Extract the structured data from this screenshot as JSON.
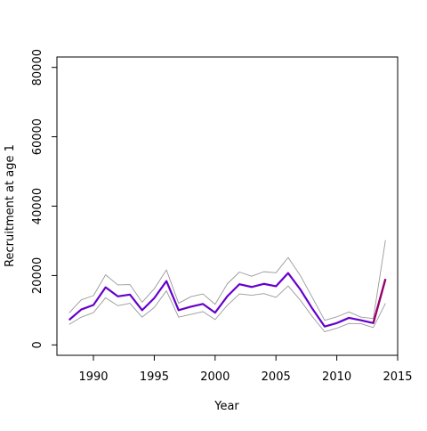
{
  "chart_data": {
    "type": "line",
    "title": "",
    "xlabel": "Year",
    "ylabel": "Recruitment at age 1",
    "xlim": [
      1987.0,
      2015.0
    ],
    "ylim": [
      -3000,
      83000
    ],
    "x_ticks": [
      1990,
      1995,
      2000,
      2005,
      2010,
      2015
    ],
    "y_ticks": [
      0,
      20000,
      40000,
      60000,
      80000
    ],
    "x": [
      1988,
      1989,
      1990,
      1991,
      1992,
      1993,
      1994,
      1995,
      1996,
      1997,
      1998,
      1999,
      2000,
      2001,
      2002,
      2003,
      2004,
      2005,
      2006,
      2007,
      2008,
      2009,
      2010,
      2011,
      2012,
      2013,
      2014
    ],
    "series": [
      {
        "role": "estimate",
        "color": "#6600cc",
        "values": [
          7200,
          10200,
          11500,
          16600,
          14000,
          14500,
          10000,
          13500,
          18400,
          10000,
          11000,
          11800,
          9300,
          14000,
          17500,
          16700,
          17600,
          16900,
          20700,
          16000,
          10400,
          5300,
          6300,
          7800,
          7100,
          6300,
          19000
        ]
      },
      {
        "role": "upper_bound",
        "color": "#999999",
        "values": [
          9200,
          13000,
          14200,
          20200,
          17300,
          17400,
          12300,
          16200,
          21600,
          12000,
          13900,
          14700,
          11700,
          17600,
          21000,
          19800,
          21100,
          20800,
          25200,
          20000,
          13600,
          7100,
          8100,
          9500,
          8000,
          7600,
          30200
        ]
      },
      {
        "role": "lower_bound",
        "color": "#999999",
        "values": [
          5900,
          8000,
          9300,
          13600,
          11300,
          12000,
          8000,
          10800,
          15600,
          8000,
          8800,
          9600,
          7300,
          11400,
          14700,
          14300,
          14800,
          13700,
          17000,
          12900,
          8100,
          3800,
          4800,
          6200,
          6100,
          5000,
          12000
        ]
      },
      {
        "role": "final_year_segment",
        "color": "#990066",
        "x": [
          2013,
          2014
        ],
        "values": [
          6300,
          19000
        ]
      }
    ],
    "grid": false,
    "legend": "none"
  }
}
